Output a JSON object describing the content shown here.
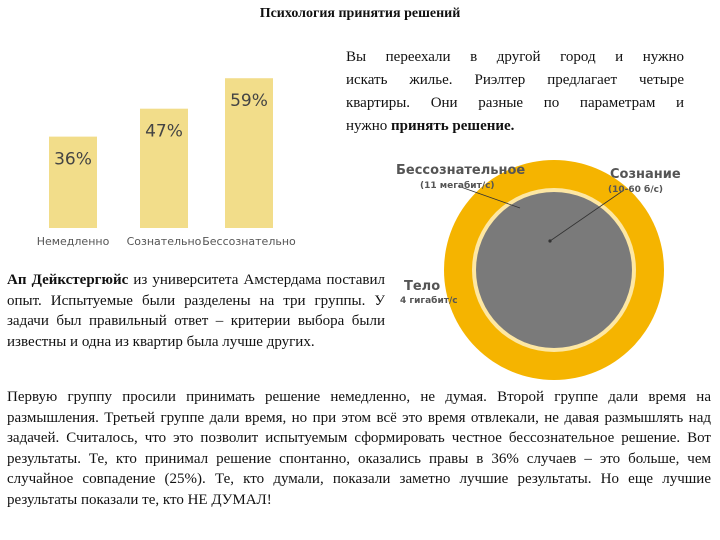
{
  "title": "Психология принятия решений",
  "intro": {
    "line1": "Вы переехали в другой город и нужно",
    "line2": "искать жилье. Риэлтер предлагает четыре",
    "line3": "квартиры. Они разные по параметрам и",
    "line4_prefix": "нужно ",
    "line4_bold": "принять решение."
  },
  "chart_data": {
    "type": "bar",
    "categories": [
      "Немедленно",
      "Сознательно",
      "Бессознательно"
    ],
    "values": [
      36,
      47,
      59
    ],
    "value_labels": [
      "36%",
      "47%",
      "59%"
    ],
    "unit": "%",
    "bar_color": "#f2dd8a",
    "ylim": [
      0,
      65
    ],
    "title": "",
    "xlabel": "",
    "ylabel": ""
  },
  "left_para": {
    "bold": "Ап Дейкстергюйс",
    "text": " из университета Амстердама поставил опыт. Испытуемые были разделены на три группы. У задачи был правильный ответ – критерии выбора были известны и одна из квартир была лучше других."
  },
  "bottom_para": {
    "text": "Первую группу просили принимать решение немедленно, не думая. Второй группе дали время на размышления. Третьей группе дали время, но при этом всё это время отвлекали, не давая размышлять над задачей. Считалось, что это позволит испытуемым сформировать честное бессознательное решение. Вот результаты. Те, кто принимал решение спонтанно, оказались правы в 36% случаев – это больше, чем случайное совпадение (25%). Те, кто думали, показали заметно лучшие результаты. Но еще лучшие результаты показали те, кто НЕ ДУМАЛ!"
  },
  "diagram": {
    "unconscious_title": "Бессознательное",
    "unconscious_sub": "(11 мегабит/с)",
    "conscious_title": "Сознание",
    "conscious_sub": "(10-60 б/с)",
    "body_title": "Тело",
    "body_sub": "4 гигабит/с",
    "outer_color": "#f5b400",
    "inner_color": "#7a7a7a"
  }
}
